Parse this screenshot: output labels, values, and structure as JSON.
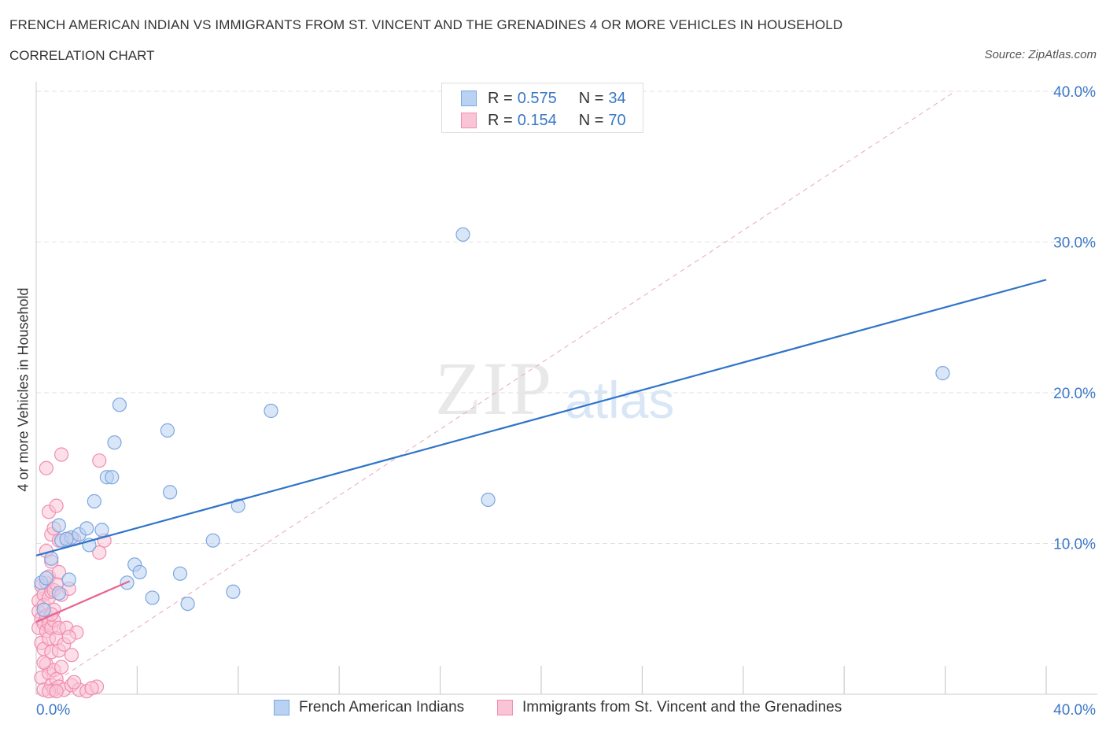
{
  "header": {
    "title": "FRENCH AMERICAN INDIAN VS IMMIGRANTS FROM ST. VINCENT AND THE GRENADINES 4 OR MORE VEHICLES IN HOUSEHOLD",
    "subtitle": "CORRELATION CHART",
    "source": "Source: ZipAtlas.com"
  },
  "watermark": {
    "zip": "ZIP",
    "atlas": "atlas"
  },
  "legend": {
    "series1": {
      "r_label": "R = ",
      "r_value": "0.575",
      "n_label": "N = ",
      "n_value": "34"
    },
    "series2": {
      "r_label": "R = ",
      "r_value": "0.154",
      "n_label": "N = ",
      "n_value": "70"
    }
  },
  "bottom_legend": {
    "series1": "French American Indians",
    "series2": "Immigrants from St. Vincent and the Grenadines"
  },
  "colors": {
    "blue_stroke": "#7ba7e0",
    "blue_fill": "#b9d2f3",
    "blue_line": "#2f74c9",
    "pink_stroke": "#f08db0",
    "pink_fill": "#f9c4d6",
    "pink_line": "#e8628e",
    "grid": "#e2e2e2",
    "axis_tick_text": "#3a77c8"
  },
  "chart_data": {
    "type": "scatter",
    "title": "FRENCH AMERICAN INDIAN VS IMMIGRANTS FROM ST. VINCENT AND THE GRENADINES 4 OR MORE VEHICLES IN HOUSEHOLD",
    "xlabel": "",
    "ylabel": "4 or more Vehicles in Household",
    "xlim": [
      0,
      40
    ],
    "ylim": [
      0,
      40
    ],
    "x_tick_labels": [
      "0.0%",
      "40.0%"
    ],
    "y_tick_values": [
      10,
      20,
      30,
      40
    ],
    "y_tick_labels": [
      "10.0%",
      "20.0%",
      "30.0%",
      "40.0%"
    ],
    "grid": true,
    "legend_position": "top-center",
    "series": [
      {
        "name": "French American Indians",
        "r": 0.575,
        "n": 34,
        "trend": [
          [
            0,
            9.2
          ],
          [
            40,
            27.5
          ]
        ],
        "points": [
          [
            0.2,
            7.4
          ],
          [
            0.4,
            7.7
          ],
          [
            0.6,
            9.0
          ],
          [
            0.9,
            11.2
          ],
          [
            1.0,
            10.2
          ],
          [
            0.9,
            6.7
          ],
          [
            1.3,
            7.6
          ],
          [
            1.4,
            10.4
          ],
          [
            1.7,
            10.6
          ],
          [
            2.0,
            11.0
          ],
          [
            2.1,
            9.9
          ],
          [
            2.3,
            12.8
          ],
          [
            2.6,
            10.9
          ],
          [
            2.8,
            14.4
          ],
          [
            3.0,
            14.4
          ],
          [
            3.1,
            16.7
          ],
          [
            3.3,
            19.2
          ],
          [
            3.6,
            7.4
          ],
          [
            3.9,
            8.6
          ],
          [
            4.1,
            8.1
          ],
          [
            4.6,
            6.4
          ],
          [
            5.2,
            17.5
          ],
          [
            5.3,
            13.4
          ],
          [
            5.7,
            8.0
          ],
          [
            6.0,
            6.0
          ],
          [
            7.0,
            10.2
          ],
          [
            7.8,
            6.8
          ],
          [
            8.0,
            12.5
          ],
          [
            9.3,
            18.8
          ],
          [
            16.9,
            30.5
          ],
          [
            17.9,
            12.9
          ],
          [
            35.9,
            21.3
          ],
          [
            0.3,
            5.6
          ],
          [
            1.2,
            10.3
          ]
        ]
      },
      {
        "name": "Immigrants from St. Vincent and the Grenadines",
        "r": 0.154,
        "n": 70,
        "trend": [
          [
            0,
            4.8
          ],
          [
            3.7,
            7.5
          ]
        ],
        "points": [
          [
            0.1,
            6.2
          ],
          [
            0.1,
            5.5
          ],
          [
            0.1,
            4.4
          ],
          [
            0.2,
            7.2
          ],
          [
            0.2,
            5.0
          ],
          [
            0.2,
            3.4
          ],
          [
            0.2,
            1.1
          ],
          [
            0.3,
            6.6
          ],
          [
            0.3,
            5.9
          ],
          [
            0.3,
            4.7
          ],
          [
            0.3,
            3.0
          ],
          [
            0.3,
            0.3
          ],
          [
            0.4,
            15.0
          ],
          [
            0.4,
            9.5
          ],
          [
            0.4,
            7.4
          ],
          [
            0.4,
            5.2
          ],
          [
            0.4,
            4.2
          ],
          [
            0.4,
            2.0
          ],
          [
            0.5,
            12.1
          ],
          [
            0.5,
            7.8
          ],
          [
            0.5,
            6.4
          ],
          [
            0.5,
            4.7
          ],
          [
            0.5,
            3.7
          ],
          [
            0.5,
            1.4
          ],
          [
            0.6,
            10.6
          ],
          [
            0.6,
            8.8
          ],
          [
            0.6,
            6.8
          ],
          [
            0.6,
            4.4
          ],
          [
            0.6,
            2.8
          ],
          [
            0.6,
            0.6
          ],
          [
            0.7,
            11.0
          ],
          [
            0.7,
            6.9
          ],
          [
            0.7,
            5.6
          ],
          [
            0.7,
            4.9
          ],
          [
            0.7,
            1.6
          ],
          [
            0.7,
            0.3
          ],
          [
            0.8,
            12.5
          ],
          [
            0.8,
            7.3
          ],
          [
            0.8,
            3.7
          ],
          [
            0.8,
            1.0
          ],
          [
            0.9,
            10.2
          ],
          [
            0.9,
            8.1
          ],
          [
            0.9,
            4.4
          ],
          [
            0.9,
            2.9
          ],
          [
            0.9,
            0.5
          ],
          [
            1.0,
            15.9
          ],
          [
            1.0,
            6.6
          ],
          [
            1.1,
            3.3
          ],
          [
            1.1,
            0.3
          ],
          [
            1.2,
            10.3
          ],
          [
            1.2,
            4.4
          ],
          [
            1.3,
            7.0
          ],
          [
            1.4,
            2.6
          ],
          [
            1.4,
            0.6
          ],
          [
            1.5,
            10.3
          ],
          [
            1.6,
            4.1
          ],
          [
            1.7,
            0.3
          ],
          [
            2.0,
            0.2
          ],
          [
            2.4,
            0.5
          ],
          [
            2.5,
            9.4
          ],
          [
            2.5,
            15.5
          ],
          [
            2.7,
            10.2
          ],
          [
            0.3,
            2.1
          ],
          [
            0.5,
            0.2
          ],
          [
            0.6,
            5.3
          ],
          [
            1.0,
            1.8
          ],
          [
            1.3,
            3.8
          ],
          [
            1.5,
            0.8
          ],
          [
            0.8,
            0.2
          ],
          [
            2.2,
            0.4
          ]
        ]
      }
    ]
  }
}
